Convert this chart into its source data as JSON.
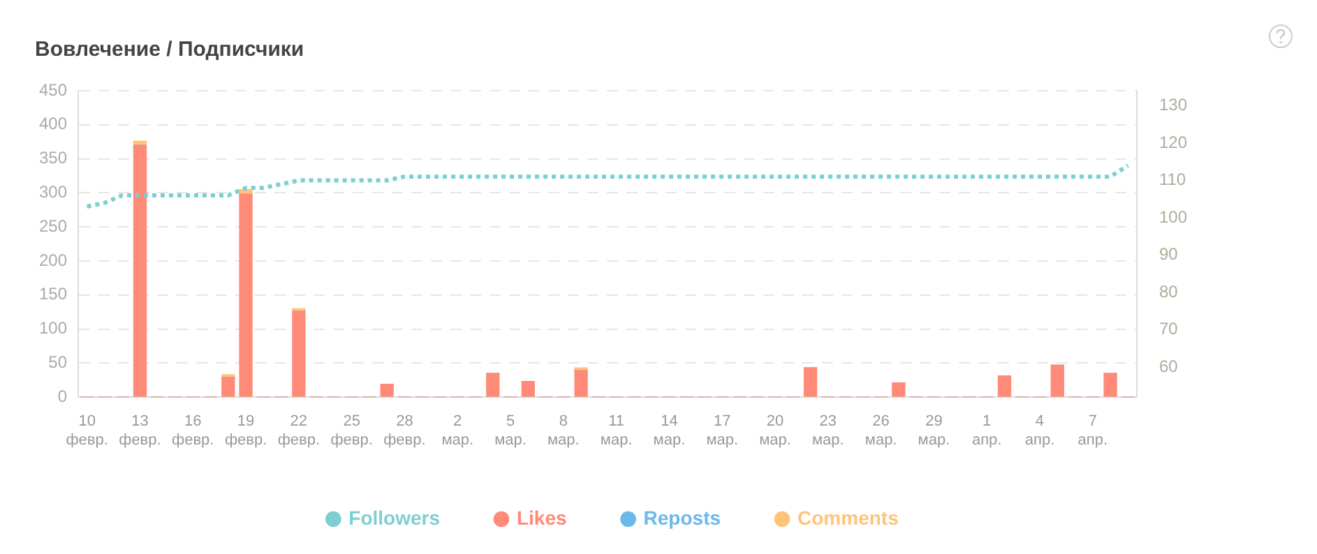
{
  "chart_data": {
    "type": "bar",
    "title": "Вовлечение / Подписчики",
    "categories": [
      "10 февр.",
      null,
      null,
      "13 февр.",
      null,
      null,
      "16 февр.",
      null,
      null,
      "19 февр.",
      null,
      null,
      "22 февр.",
      null,
      null,
      "25 февр.",
      null,
      null,
      "28 февр.",
      null,
      null,
      "2 мар.",
      null,
      null,
      "5 мар.",
      null,
      null,
      "8 мар.",
      null,
      null,
      "11 мар.",
      null,
      null,
      "14 мар.",
      null,
      null,
      "17 мар.",
      null,
      null,
      "20 мар.",
      null,
      null,
      "23 мар.",
      null,
      null,
      "26 мар.",
      null,
      null,
      "29 мар.",
      null,
      null,
      "1 апр.",
      null,
      null,
      "4 апр.",
      null,
      null,
      "7 апр.",
      null,
      null
    ],
    "series": [
      {
        "name": "Followers",
        "type": "line",
        "axis": "y2",
        "color": "#7ecfd0",
        "values": [
          103,
          104,
          106,
          106,
          106,
          106,
          106,
          106,
          106,
          108,
          108,
          109,
          110,
          110,
          110,
          110,
          110,
          110,
          111,
          111,
          111,
          111,
          111,
          111,
          111,
          111,
          111,
          111,
          111,
          111,
          111,
          111,
          111,
          111,
          111,
          111,
          111,
          111,
          111,
          111,
          111,
          111,
          111,
          111,
          111,
          111,
          111,
          111,
          111,
          111,
          111,
          111,
          111,
          111,
          111,
          111,
          111,
          111,
          111,
          114
        ]
      },
      {
        "name": "Likes",
        "color": "#ff8a78",
        "values": [
          0,
          0,
          0,
          370,
          0,
          0,
          0,
          0,
          29,
          298,
          0,
          0,
          126,
          0,
          0,
          0,
          0,
          19,
          0,
          0,
          0,
          0,
          0,
          35,
          0,
          23,
          0,
          0,
          39,
          0,
          0,
          0,
          0,
          0,
          0,
          0,
          0,
          0,
          0,
          0,
          0,
          43,
          0,
          0,
          0,
          0,
          21,
          0,
          0,
          0,
          0,
          0,
          31,
          0,
          0,
          47,
          0,
          0,
          35,
          0
        ]
      },
      {
        "name": "Reposts",
        "color": "#6cb8ec",
        "values": [
          0,
          0,
          0,
          0,
          0,
          0,
          0,
          0,
          0,
          0,
          0,
          0,
          0,
          0,
          0,
          0,
          0,
          0,
          0,
          0,
          0,
          0,
          0,
          0,
          0,
          0,
          0,
          0,
          0,
          0,
          0,
          0,
          0,
          0,
          0,
          0,
          0,
          0,
          0,
          0,
          0,
          0,
          0,
          0,
          0,
          0,
          0,
          0,
          0,
          0,
          0,
          0,
          0,
          0,
          0,
          0,
          0,
          0,
          0,
          0
        ]
      },
      {
        "name": "Comments",
        "color": "#ffc47a",
        "values": [
          0,
          0,
          0,
          6,
          0,
          0,
          0,
          0,
          4,
          7,
          0,
          0,
          4,
          0,
          0,
          0,
          0,
          0,
          0,
          0,
          0,
          0,
          0,
          0,
          0,
          0,
          0,
          0,
          4,
          0,
          0,
          0,
          0,
          0,
          0,
          0,
          0,
          0,
          0,
          0,
          0,
          0,
          0,
          0,
          0,
          0,
          0,
          0,
          0,
          0,
          0,
          0,
          0,
          0,
          0,
          0,
          0,
          0,
          0,
          0
        ]
      }
    ],
    "stacked": true,
    "ylim": [
      0,
      450
    ],
    "yticks": [
      0,
      50,
      100,
      150,
      200,
      250,
      300,
      350,
      400,
      450
    ],
    "y2lim": [
      52,
      134
    ],
    "y2ticks": [
      60,
      70,
      80,
      90,
      100,
      110,
      120,
      130
    ],
    "grid": "y",
    "legend": "bottom",
    "marker": "none",
    "line_style": "dotted"
  }
}
